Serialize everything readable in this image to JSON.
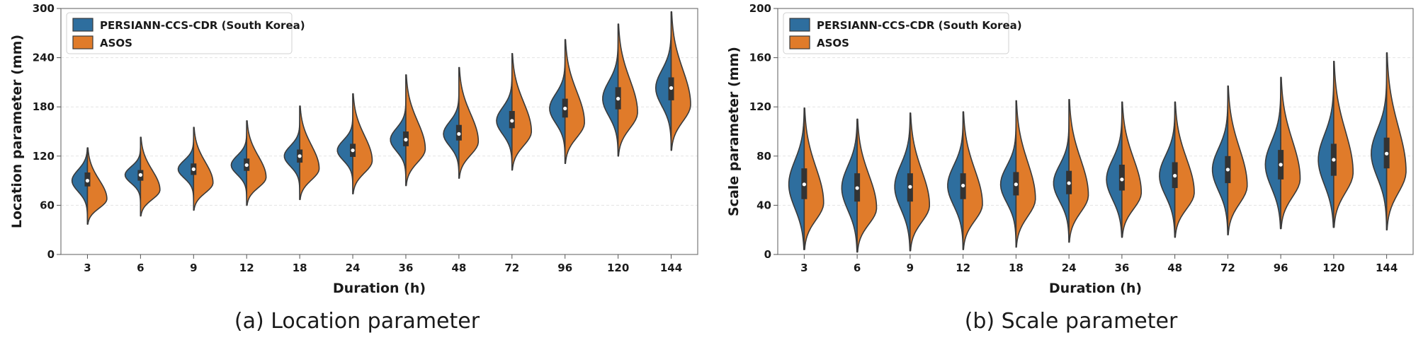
{
  "captions": {
    "a": "(a) Location parameter",
    "b": "(b) Scale parameter"
  },
  "colors": {
    "persiann": "#2e6e9e",
    "asos": "#e07b2a",
    "outline": "#3a3a3a",
    "box": "#333333"
  },
  "chart_data": [
    {
      "type": "violin",
      "split": true,
      "xlabel": "Duration (h)",
      "ylabel": "Location parameter (mm)",
      "ylim": [
        0,
        300
      ],
      "yticks": [
        0,
        60,
        120,
        180,
        240,
        300
      ],
      "grid": "horizontal dashed",
      "legend": "top-left",
      "categories": [
        "3",
        "6",
        "9",
        "12",
        "18",
        "24",
        "36",
        "48",
        "72",
        "96",
        "120",
        "144"
      ],
      "series": [
        {
          "name": "PERSIANN-CCS-CDR (South Korea)",
          "median": [
            90,
            97,
            104,
            109,
            120,
            127,
            140,
            147,
            163,
            178,
            190,
            203
          ],
          "q1": [
            83,
            90,
            97,
            102,
            112,
            119,
            132,
            139,
            154,
            167,
            177,
            188
          ],
          "q3": [
            100,
            103,
            111,
            117,
            128,
            135,
            150,
            158,
            175,
            190,
            204,
            216
          ],
          "min": [
            37,
            47,
            54,
            60,
            67,
            74,
            84,
            93,
            103,
            111,
            120,
            127
          ],
          "max": [
            130,
            143,
            155,
            163,
            181,
            196,
            219,
            228,
            245,
            262,
            281,
            296
          ]
        },
        {
          "name": "ASOS",
          "min": [
            37,
            47,
            54,
            60,
            67,
            74,
            84,
            93,
            103,
            111,
            120,
            127
          ],
          "max": [
            130,
            143,
            155,
            163,
            181,
            196,
            219,
            228,
            245,
            262,
            281,
            296
          ]
        }
      ]
    },
    {
      "type": "violin",
      "split": true,
      "xlabel": "Duration (h)",
      "ylabel": "Scale parameter (mm)",
      "ylim": [
        0,
        200
      ],
      "yticks": [
        0,
        40,
        80,
        120,
        160,
        200
      ],
      "grid": "horizontal dashed",
      "legend": "top-left",
      "categories": [
        "3",
        "6",
        "9",
        "12",
        "18",
        "24",
        "36",
        "48",
        "72",
        "96",
        "120",
        "144"
      ],
      "series": [
        {
          "name": "PERSIANN-CCS-CDR (South Korea)",
          "median": [
            57,
            54,
            55,
            56,
            57,
            58,
            61,
            64,
            69,
            73,
            77,
            82
          ],
          "q1": [
            45,
            43,
            43,
            45,
            48,
            49,
            52,
            54,
            58,
            61,
            64,
            70
          ],
          "q3": [
            70,
            66,
            66,
            66,
            67,
            68,
            73,
            75,
            80,
            85,
            90,
            95
          ],
          "min": [
            4,
            2,
            3,
            4,
            6,
            10,
            14,
            14,
            16,
            21,
            22,
            20
          ],
          "max": [
            119,
            110,
            115,
            116,
            125,
            126,
            124,
            124,
            137,
            144,
            157,
            164
          ]
        },
        {
          "name": "ASOS",
          "min": [
            4,
            2,
            3,
            4,
            6,
            10,
            14,
            14,
            16,
            21,
            22,
            20
          ],
          "max": [
            119,
            110,
            115,
            116,
            125,
            126,
            124,
            124,
            137,
            144,
            157,
            164
          ]
        }
      ]
    }
  ]
}
